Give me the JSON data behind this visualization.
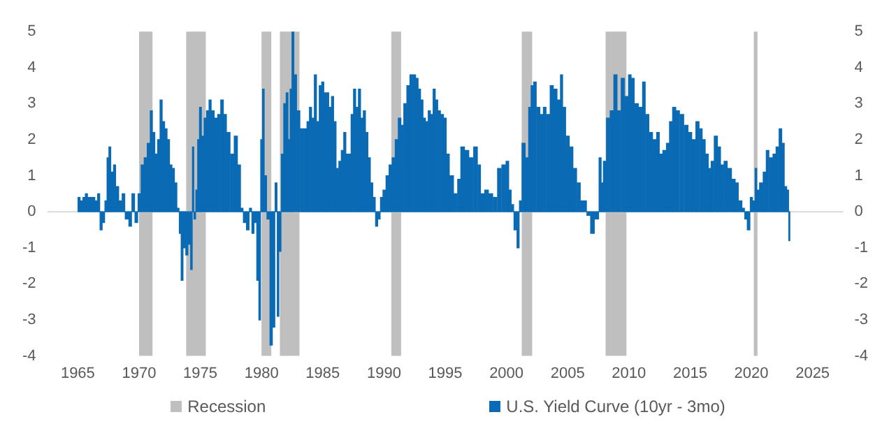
{
  "chart_data": {
    "type": "bar",
    "x": [
      1965.1,
      1965.3,
      1965.5,
      1965.7,
      1965.9,
      1966.1,
      1966.3,
      1966.5,
      1966.7,
      1966.9,
      1967.1,
      1967.3,
      1967.45,
      1967.6,
      1967.8,
      1968.0,
      1968.2,
      1968.5,
      1968.7,
      1969.0,
      1969.3,
      1969.5,
      1969.8,
      1970.0,
      1970.3,
      1970.5,
      1970.8,
      1971.0,
      1971.2,
      1971.4,
      1971.6,
      1971.8,
      1972.0,
      1972.2,
      1972.4,
      1972.6,
      1972.8,
      1973.0,
      1973.2,
      1973.35,
      1973.5,
      1973.7,
      1973.9,
      1974.1,
      1974.3,
      1974.4,
      1974.55,
      1974.7,
      1974.85,
      1975.0,
      1975.2,
      1975.4,
      1975.6,
      1975.8,
      1976.0,
      1976.3,
      1976.5,
      1976.8,
      1977.0,
      1977.3,
      1977.6,
      1977.9,
      1978.2,
      1978.4,
      1978.6,
      1978.9,
      1979.1,
      1979.3,
      1979.5,
      1979.7,
      1979.85,
      1980.0,
      1980.15,
      1980.3,
      1980.55,
      1980.8,
      1981.0,
      1981.2,
      1981.35,
      1981.5,
      1981.7,
      1981.9,
      1982.1,
      1982.25,
      1982.4,
      1982.55,
      1982.75,
      1983.0,
      1983.3,
      1983.6,
      1983.8,
      1984.0,
      1984.2,
      1984.4,
      1984.6,
      1984.8,
      1985.0,
      1985.2,
      1985.4,
      1985.6,
      1985.8,
      1986.0,
      1986.2,
      1986.4,
      1986.6,
      1986.8,
      1987.0,
      1987.2,
      1987.4,
      1987.6,
      1987.8,
      1988.0,
      1988.2,
      1988.4,
      1988.6,
      1988.8,
      1989.0,
      1989.2,
      1989.4,
      1989.6,
      1989.8,
      1990.0,
      1990.3,
      1990.5,
      1990.8,
      1991.0,
      1991.3,
      1991.5,
      1991.7,
      1992.0,
      1992.2,
      1992.5,
      1992.7,
      1992.9,
      1993.1,
      1993.3,
      1993.5,
      1993.7,
      1993.9,
      1994.1,
      1994.3,
      1994.5,
      1994.75,
      1995.0,
      1995.2,
      1995.5,
      1995.9,
      1996.1,
      1996.4,
      1996.8,
      1997.1,
      1997.5,
      1997.8,
      1998.0,
      1998.4,
      1998.7,
      1999.1,
      1999.4,
      1999.8,
      2000.1,
      2000.3,
      2000.5,
      2000.7,
      2001.0,
      2001.1,
      2001.4,
      2001.7,
      2001.9,
      2002.1,
      2002.3,
      2002.6,
      2002.9,
      2003.1,
      2003.4,
      2003.7,
      2004.0,
      2004.3,
      2004.5,
      2004.7,
      2005.0,
      2005.3,
      2005.6,
      2005.9,
      2006.2,
      2006.4,
      2006.7,
      2007.0,
      2007.4,
      2007.7,
      2007.8,
      2008.0,
      2008.3,
      2008.6,
      2008.9,
      2009.2,
      2009.5,
      2009.8,
      2010.1,
      2010.3,
      2010.6,
      2011.0,
      2011.2,
      2011.5,
      2011.8,
      2012.1,
      2012.4,
      2012.6,
      2012.9,
      2013.2,
      2013.4,
      2013.7,
      2014.0,
      2014.3,
      2014.7,
      2015.0,
      2015.3,
      2015.6,
      2015.9,
      2016.1,
      2016.4,
      2016.6,
      2016.8,
      2017.1,
      2017.4,
      2017.6,
      2017.9,
      2018.2,
      2018.6,
      2018.8,
      2019.1,
      2019.4,
      2019.5,
      2019.8,
      2020.0,
      2020.2,
      2020.4,
      2020.5,
      2020.8,
      2021.1,
      2021.3,
      2021.6,
      2021.9,
      2022.1,
      2022.4,
      2022.6,
      2022.8,
      2023.0,
      2023.1
    ],
    "series": [
      {
        "name": "U.S. Yield Curve (10yr - 3mo)",
        "color": "#0a6ab4",
        "values": [
          0.4,
          0.3,
          0.4,
          0.5,
          0.4,
          0.4,
          0.4,
          0.3,
          0.5,
          -0.5,
          -0.3,
          0.3,
          1.5,
          1.8,
          1.1,
          1.3,
          0.7,
          0.3,
          0.5,
          -0.2,
          -0.4,
          0.5,
          -0.3,
          0.5,
          1.3,
          1.5,
          1.9,
          2.8,
          2.2,
          1.6,
          2.0,
          3.1,
          2.5,
          2.3,
          2.0,
          1.3,
          1.2,
          0.8,
          0.1,
          -0.6,
          -1.9,
          -1.0,
          -1.2,
          -0.9,
          -1.6,
          1.8,
          -0.2,
          0.6,
          2.0,
          2.9,
          2.1,
          2.6,
          2.8,
          3.1,
          2.8,
          2.6,
          2.7,
          3.1,
          2.7,
          2.2,
          1.6,
          2.1,
          1.3,
          0.1,
          -0.3,
          -0.5,
          0.1,
          -0.6,
          -0.3,
          -1.9,
          -3.0,
          2.0,
          3.4,
          1.0,
          -0.2,
          -3.7,
          -3.2,
          0.8,
          -2.9,
          -1.1,
          1.6,
          3.0,
          3.3,
          2.0,
          3.4,
          5.0,
          3.8,
          2.8,
          2.3,
          2.3,
          2.5,
          2.9,
          2.6,
          3.8,
          2.5,
          3.5,
          3.6,
          3.3,
          3.3,
          2.9,
          3.2,
          2.5,
          1.2,
          1.4,
          1.7,
          2.2,
          1.6,
          1.6,
          2.7,
          3.4,
          2.9,
          3.4,
          2.6,
          2.8,
          2.2,
          1.5,
          0.8,
          0.4,
          -0.4,
          -0.2,
          0.4,
          0.6,
          1.0,
          1.3,
          1.5,
          2.0,
          2.6,
          2.4,
          3.0,
          3.5,
          3.8,
          3.8,
          3.7,
          3.4,
          3.1,
          2.6,
          2.5,
          2.8,
          2.7,
          3.4,
          3.1,
          2.8,
          2.7,
          2.6,
          1.6,
          1.0,
          0.5,
          0.9,
          1.8,
          1.7,
          1.5,
          1.8,
          1.3,
          0.5,
          0.6,
          0.5,
          0.4,
          1.2,
          1.3,
          1.4,
          0.6,
          0.2,
          -0.5,
          -1.0,
          0.3,
          1.9,
          1.5,
          2.9,
          3.5,
          3.6,
          2.9,
          2.7,
          2.9,
          2.7,
          3.5,
          3.4,
          3.1,
          3.8,
          2.9,
          2.1,
          1.8,
          1.2,
          0.8,
          0.3,
          0.3,
          -0.1,
          -0.6,
          -0.2,
          1.5,
          0.8,
          1.4,
          2.6,
          2.8,
          3.8,
          2.8,
          3.7,
          3.2,
          3.8,
          3.7,
          3.0,
          2.9,
          3.6,
          2.7,
          2.2,
          2.0,
          2.2,
          1.6,
          1.7,
          1.9,
          2.5,
          2.9,
          2.8,
          2.7,
          2.4,
          2.2,
          2.0,
          2.5,
          2.3,
          2.0,
          1.6,
          1.2,
          1.4,
          2.1,
          1.8,
          1.3,
          1.4,
          1.2,
          0.9,
          0.8,
          0.3,
          0.1,
          -0.2,
          -0.5,
          0.4,
          0.3,
          1.2,
          0.6,
          0.8,
          1.1,
          1.7,
          1.5,
          1.6,
          1.8,
          2.3,
          1.9,
          0.7,
          0.6,
          -0.8
        ]
      }
    ],
    "xlim": [
      1965,
      2025
    ],
    "xticks": [
      1965,
      1970,
      1975,
      1980,
      1985,
      1990,
      1995,
      2000,
      2005,
      2010,
      2015,
      2020,
      2025
    ],
    "ylim": [
      -4,
      5
    ],
    "yticks": [
      -4,
      -3,
      -2,
      -1,
      0,
      1,
      2,
      3,
      4,
      5
    ],
    "y2lim": [
      -4,
      5
    ],
    "y2ticks": [
      -4,
      -3,
      -2,
      -1,
      0,
      1,
      2,
      3,
      4,
      5
    ],
    "bands": [
      {
        "axis": "x",
        "from": 1970.0,
        "to": 1971.1,
        "label": "Recession",
        "color": "#bfbfbf"
      },
      {
        "axis": "x",
        "from": 1973.85,
        "to": 1975.45,
        "color": "#bfbfbf"
      },
      {
        "axis": "x",
        "from": 1980.0,
        "to": 1980.8,
        "color": "#bfbfbf"
      },
      {
        "axis": "x",
        "from": 1981.5,
        "to": 1983.1,
        "color": "#bfbfbf"
      },
      {
        "axis": "x",
        "from": 1990.6,
        "to": 1991.4,
        "color": "#bfbfbf"
      },
      {
        "axis": "x",
        "from": 2001.25,
        "to": 2002.1,
        "color": "#bfbfbf"
      },
      {
        "axis": "x",
        "from": 2008.1,
        "to": 2009.8,
        "color": "#bfbfbf"
      },
      {
        "axis": "x",
        "from": 2020.2,
        "to": 2020.5,
        "color": "#bfbfbf"
      }
    ],
    "ref_lines": [
      {
        "axis": "y",
        "value": 0,
        "color": "#d9d9d9"
      }
    ],
    "grid": false,
    "legend": "bottom"
  }
}
